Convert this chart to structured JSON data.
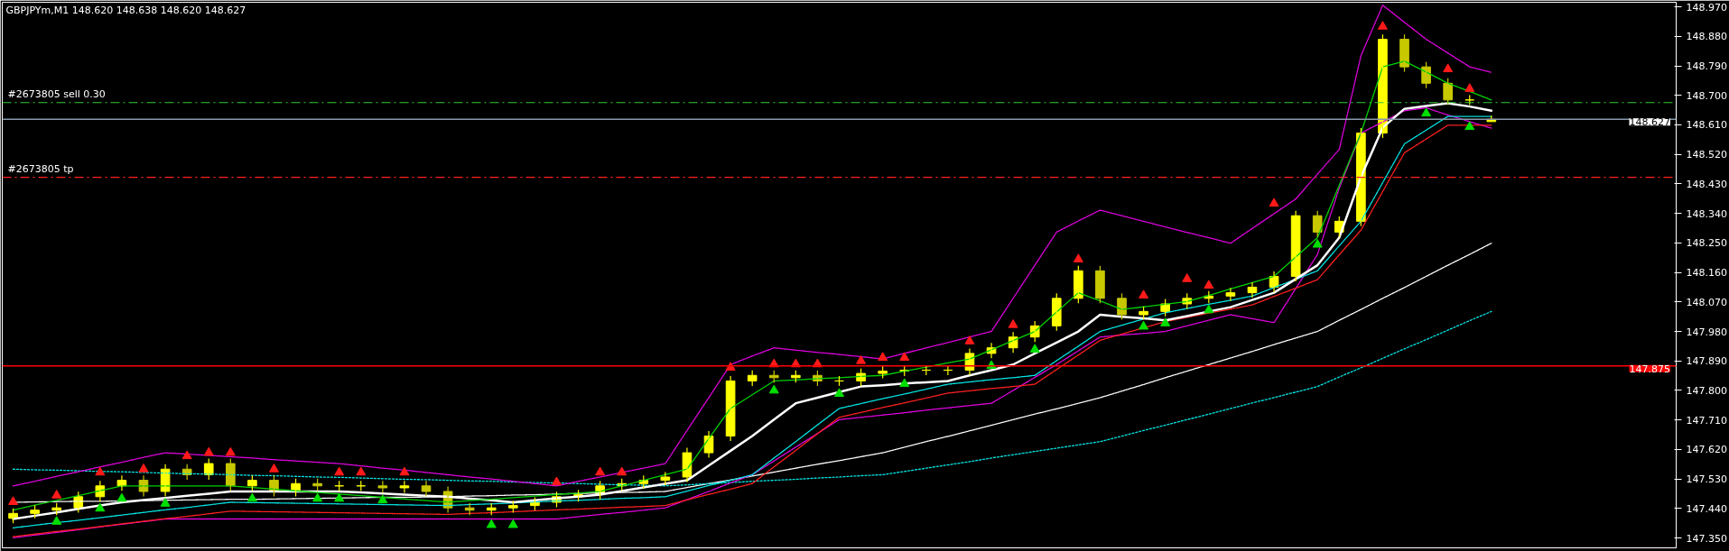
{
  "chart_data": {
    "type": "candlestick",
    "title": "GBPJPYm,M1  148.620 148.638 148.620 148.627",
    "colors": [
      "#ffff00",
      "#ffff00",
      "#ffff00",
      "#ffff00",
      "#ffff00",
      "#ffff00",
      "#c8c800",
      "#ffff00",
      "#c8c800",
      "#ffff00",
      "#c8c800",
      "#ffff00",
      "#c8c800",
      "#ffff00",
      "#c8c800",
      "#ffff00",
      "#ffff00",
      "#c8c800",
      "#ffff00",
      "#c8c800",
      "#c8c800",
      "#c8c800",
      "#ffff00",
      "#ffff00",
      "#ffff00",
      "#ffff00",
      "#ffff00",
      "#ffff00",
      "#ffff00",
      "#ffff00",
      "#ffff00",
      "#ffff00",
      "#ffff00",
      "#ffff00",
      "#ffff00",
      "#c8c800",
      "#ffff00",
      "#c8c800",
      "#ffff00",
      "#ffff00",
      "#ffff00",
      "#ffff00",
      "#ffff00",
      "#ffff00",
      "#ffff00",
      "#ffff00",
      "#ffff00",
      "#ffff00",
      "#ffff00",
      "#ffff00",
      "#c8c800",
      "#c8c800",
      "#ffff00",
      "#ffff00",
      "#ffff00",
      "#ffff00",
      "#ffff00",
      "#ffff00",
      "#ffff00",
      "#ffff00",
      "#c8c800",
      "#ffff00",
      "#ffff00",
      "#ffff00",
      "#c8c800",
      "#c8c800",
      "#c8c800",
      "#ffff00",
      "#ffff00",
      null,
      null,
      null,
      null,
      null,
      null,
      null,
      null
    ],
    "categories": [
      null,
      null,
      null,
      null,
      null,
      null,
      null,
      null,
      null,
      null,
      null,
      null,
      null,
      null,
      null,
      null,
      null,
      null,
      null,
      null,
      null,
      null,
      null,
      null,
      null,
      null,
      null,
      null,
      null,
      null,
      null,
      null,
      null,
      null,
      null,
      null,
      null,
      null,
      null,
      null,
      null,
      null,
      null,
      null,
      null,
      null,
      null,
      null,
      null,
      null,
      null,
      null,
      null,
      null,
      null,
      null,
      null,
      null,
      null,
      null,
      null,
      null,
      null,
      null,
      null,
      null,
      null,
      null,
      null,
      null,
      null,
      null,
      null,
      null,
      null,
      null,
      null
    ],
    "ohlc": [
      [
        147.41,
        147.44,
        147.395,
        147.425
      ],
      [
        147.425,
        147.45,
        147.41,
        147.435
      ],
      [
        147.435,
        147.457,
        147.42,
        147.442
      ],
      [
        147.442,
        147.491,
        147.427,
        147.476
      ],
      [
        147.476,
        147.524,
        147.461,
        147.509
      ],
      [
        147.509,
        147.541,
        147.494,
        147.526
      ],
      [
        147.526,
        147.541,
        147.477,
        147.492
      ],
      [
        147.492,
        147.575,
        147.477,
        147.56
      ],
      [
        147.56,
        147.575,
        147.528,
        147.543
      ],
      [
        147.543,
        147.592,
        147.528,
        147.577
      ],
      [
        147.577,
        147.592,
        147.494,
        147.509
      ],
      [
        147.509,
        147.541,
        147.494,
        147.526
      ],
      [
        147.526,
        147.541,
        147.477,
        147.492
      ],
      [
        147.492,
        147.531,
        147.477,
        147.516
      ],
      [
        147.516,
        147.531,
        147.494,
        147.509
      ],
      [
        147.509,
        147.524,
        147.494,
        147.509
      ],
      [
        147.509,
        147.524,
        147.494,
        147.509
      ],
      [
        147.509,
        147.524,
        147.488,
        147.503
      ],
      [
        147.503,
        147.524,
        147.488,
        147.509
      ],
      [
        147.509,
        147.524,
        147.477,
        147.492
      ],
      [
        147.492,
        147.507,
        147.427,
        147.442
      ],
      [
        147.442,
        147.457,
        147.42,
        147.435
      ],
      [
        147.435,
        147.457,
        147.42,
        147.442
      ],
      [
        147.442,
        147.464,
        147.427,
        147.449
      ],
      [
        147.449,
        147.474,
        147.434,
        147.459
      ],
      [
        147.459,
        147.491,
        147.444,
        147.476
      ],
      [
        147.476,
        147.497,
        147.461,
        147.482
      ],
      [
        147.482,
        147.524,
        147.467,
        147.509
      ],
      [
        147.509,
        147.531,
        147.494,
        147.516
      ],
      [
        147.516,
        147.541,
        147.501,
        147.526
      ],
      [
        147.526,
        147.551,
        147.511,
        147.536
      ],
      [
        147.536,
        147.625,
        147.521,
        147.61
      ],
      [
        147.61,
        147.676,
        147.595,
        147.661
      ],
      [
        147.661,
        147.844,
        147.646,
        147.829
      ],
      [
        147.829,
        147.861,
        147.814,
        147.846
      ],
      [
        147.846,
        147.861,
        147.824,
        147.839
      ],
      [
        147.839,
        147.861,
        147.824,
        147.846
      ],
      [
        147.846,
        147.861,
        147.814,
        147.829
      ],
      [
        147.829,
        147.844,
        147.814,
        147.829
      ],
      [
        147.829,
        147.867,
        147.814,
        147.852
      ],
      [
        147.852,
        147.874,
        147.837,
        147.859
      ],
      [
        147.859,
        147.877,
        147.844,
        147.862
      ],
      [
        147.862,
        147.877,
        147.847,
        147.862
      ],
      [
        147.862,
        147.877,
        147.847,
        147.862
      ],
      [
        147.862,
        147.928,
        147.847,
        147.913
      ],
      [
        147.913,
        147.945,
        147.898,
        147.93
      ],
      [
        147.93,
        147.978,
        147.915,
        147.963
      ],
      [
        147.963,
        148.012,
        147.948,
        147.997
      ],
      [
        147.997,
        148.096,
        147.982,
        148.081
      ],
      [
        148.081,
        148.18,
        148.066,
        148.165
      ],
      [
        148.165,
        148.18,
        148.066,
        148.081
      ],
      [
        148.081,
        148.096,
        148.016,
        148.031
      ],
      [
        148.031,
        148.056,
        148.016,
        148.041
      ],
      [
        148.041,
        148.079,
        148.026,
        148.064
      ],
      [
        148.064,
        148.096,
        148.049,
        148.081
      ],
      [
        148.081,
        148.103,
        148.066,
        148.088
      ],
      [
        148.088,
        148.113,
        148.073,
        148.098
      ],
      [
        148.098,
        148.13,
        148.083,
        148.115
      ],
      [
        148.115,
        148.163,
        148.1,
        148.148
      ],
      [
        148.148,
        148.348,
        148.133,
        148.333
      ],
      [
        148.333,
        148.348,
        148.268,
        148.283
      ],
      [
        148.283,
        148.331,
        148.268,
        148.316
      ],
      [
        148.316,
        148.6,
        148.301,
        148.585
      ],
      [
        148.585,
        148.886,
        148.57,
        148.871
      ],
      [
        148.871,
        148.886,
        148.772,
        148.787
      ],
      [
        148.787,
        148.802,
        148.722,
        148.737
      ],
      [
        148.737,
        148.752,
        148.671,
        148.686
      ],
      [
        148.686,
        148.701,
        148.671,
        148.686
      ],
      [
        148.62,
        148.638,
        148.62,
        148.627
      ],
      null,
      null,
      null,
      null,
      null,
      null,
      null,
      null
    ],
    "series": [
      {
        "type": "line",
        "color": "#ffffff",
        "line_style": "dashed",
        "values": [
          147.459,
          147.46,
          147.461,
          147.462,
          147.462,
          147.463,
          147.464,
          147.465,
          147.466,
          147.467,
          147.468,
          147.468,
          147.469,
          147.47,
          147.471,
          147.472,
          147.473,
          147.474,
          147.474,
          147.475,
          147.476,
          147.478,
          147.479,
          147.481,
          147.482,
          147.484,
          147.486,
          147.487,
          147.489,
          147.49,
          147.492,
          147.504,
          147.516,
          147.527,
          147.539,
          147.551,
          147.563,
          147.575,
          147.586,
          147.598,
          147.61,
          147.627,
          147.644,
          147.66,
          147.677,
          147.694,
          147.711,
          147.728,
          147.744,
          147.761,
          147.778,
          147.798,
          147.818,
          147.839,
          147.859,
          147.879,
          147.899,
          147.919,
          147.94,
          147.96,
          147.98,
          148.014,
          148.047,
          148.081,
          148.114,
          148.148,
          148.182,
          148.215,
          148.249,
          null,
          null,
          null,
          null,
          null,
          null,
          null,
          null
        ]
      },
      {
        "type": "line",
        "color": "#00e5e5",
        "line_style": "dotted",
        "values": [
          147.56,
          147.558,
          147.557,
          147.555,
          147.553,
          147.552,
          147.55,
          147.548,
          147.546,
          147.545,
          147.543,
          147.541,
          147.54,
          147.538,
          147.536,
          147.535,
          147.533,
          147.531,
          147.529,
          147.528,
          147.526,
          147.524,
          147.523,
          147.521,
          147.519,
          147.518,
          147.516,
          147.514,
          147.512,
          147.511,
          147.509,
          147.512,
          147.516,
          147.519,
          147.523,
          147.526,
          147.529,
          147.533,
          147.536,
          147.54,
          147.543,
          147.553,
          147.563,
          147.573,
          147.583,
          147.594,
          147.604,
          147.614,
          147.624,
          147.634,
          147.644,
          147.661,
          147.678,
          147.694,
          147.711,
          147.728,
          147.745,
          147.762,
          147.778,
          147.795,
          147.812,
          147.841,
          147.869,
          147.898,
          147.927,
          147.955,
          147.984,
          148.013,
          148.041,
          null,
          null,
          null,
          null,
          null,
          null,
          null,
          null
        ]
      },
      {
        "type": "line",
        "color": "#e000e0",
        "line_style": "dashed",
        "values": [
          147.509,
          147.523,
          147.538,
          147.552,
          147.567,
          147.581,
          147.596,
          147.61,
          147.606,
          147.602,
          147.598,
          147.594,
          147.589,
          147.585,
          147.581,
          147.577,
          147.57,
          147.563,
          147.557,
          147.55,
          147.543,
          147.536,
          147.53,
          147.523,
          147.516,
          147.509,
          147.523,
          147.536,
          147.55,
          147.563,
          147.577,
          147.678,
          147.778,
          147.879,
          147.905,
          147.93,
          147.923,
          147.916,
          147.91,
          147.903,
          147.896,
          147.913,
          147.93,
          147.946,
          147.963,
          147.98,
          148.081,
          148.182,
          148.283,
          148.317,
          148.35,
          148.333,
          148.316,
          148.299,
          148.282,
          148.266,
          148.249,
          148.294,
          148.339,
          148.384,
          148.46,
          148.535,
          148.821,
          148.975,
          148.923,
          148.871,
          148.829,
          148.787,
          148.77,
          null,
          null,
          null,
          null,
          null,
          null,
          null,
          null
        ]
      },
      {
        "type": "line",
        "color": "#e000e0",
        "line_style": "dashed",
        "values": [
          147.351,
          147.359,
          147.367,
          147.375,
          147.384,
          147.392,
          147.4,
          147.408,
          147.408,
          147.408,
          147.408,
          147.408,
          147.408,
          147.408,
          147.408,
          147.408,
          147.408,
          147.408,
          147.408,
          147.408,
          147.408,
          147.408,
          147.408,
          147.408,
          147.408,
          147.408,
          147.415,
          147.422,
          147.428,
          147.435,
          147.442,
          147.467,
          147.492,
          147.518,
          147.543,
          147.585,
          147.627,
          147.669,
          147.711,
          147.718,
          147.725,
          147.732,
          147.74,
          147.747,
          147.754,
          147.761,
          147.8,
          147.84,
          147.879,
          147.921,
          147.963,
          147.969,
          147.974,
          147.98,
          147.997,
          148.014,
          148.031,
          148.019,
          148.007,
          148.111,
          148.215,
          148.417,
          148.585,
          148.619,
          148.653,
          148.662,
          148.64,
          148.62,
          148.6,
          null,
          null,
          null,
          null,
          null,
          null,
          null,
          null
        ]
      },
      {
        "type": "line",
        "color": "#ff2020",
        "line_style": "dashed",
        "values": [
          147.354,
          147.362,
          147.37,
          147.377,
          147.385,
          147.393,
          147.401,
          147.409,
          147.416,
          147.424,
          147.432,
          147.431,
          147.43,
          147.429,
          147.428,
          147.427,
          147.426,
          147.425,
          147.424,
          147.423,
          147.422,
          147.425,
          147.427,
          147.43,
          147.433,
          147.436,
          147.438,
          147.441,
          147.444,
          147.446,
          147.449,
          147.466,
          147.483,
          147.499,
          147.516,
          147.567,
          147.617,
          147.668,
          147.718,
          147.733,
          147.748,
          147.762,
          147.777,
          147.792,
          147.799,
          147.806,
          147.812,
          147.819,
          147.864,
          147.908,
          147.953,
          147.972,
          147.991,
          148.01,
          148.023,
          148.036,
          148.048,
          148.061,
          148.087,
          148.112,
          148.138,
          148.214,
          148.289,
          148.407,
          148.525,
          148.567,
          148.609,
          148.609,
          148.609,
          null,
          null,
          null,
          null,
          null,
          null,
          null,
          null
        ]
      },
      {
        "type": "line",
        "color": "#00e5e5",
        "line_style": "dashed",
        "values": [
          147.381,
          147.389,
          147.397,
          147.404,
          147.412,
          147.42,
          147.428,
          147.436,
          147.443,
          147.451,
          147.459,
          147.458,
          147.457,
          147.456,
          147.455,
          147.454,
          147.453,
          147.452,
          147.451,
          147.45,
          147.449,
          147.452,
          147.454,
          147.457,
          147.46,
          147.463,
          147.465,
          147.468,
          147.471,
          147.473,
          147.476,
          147.493,
          147.51,
          147.526,
          147.543,
          147.594,
          147.644,
          147.695,
          147.745,
          147.76,
          147.775,
          147.789,
          147.804,
          147.819,
          147.826,
          147.833,
          147.839,
          147.846,
          147.891,
          147.935,
          147.98,
          147.999,
          148.018,
          148.037,
          148.05,
          148.063,
          148.075,
          148.088,
          148.114,
          148.139,
          148.165,
          148.241,
          148.316,
          148.434,
          148.552,
          148.594,
          148.636,
          148.636,
          148.636,
          null,
          null,
          null,
          null,
          null,
          null,
          null,
          null
        ]
      },
      {
        "type": "line",
        "color": "#ffffff",
        "line_style": "solid",
        "values": [
          147.408,
          147.418,
          147.428,
          147.439,
          147.449,
          147.459,
          147.466,
          147.472,
          147.479,
          147.485,
          147.492,
          147.492,
          147.492,
          147.492,
          147.492,
          147.492,
          147.489,
          147.486,
          147.482,
          147.479,
          147.476,
          147.47,
          147.465,
          147.459,
          147.465,
          147.471,
          147.476,
          147.482,
          147.493,
          147.504,
          147.515,
          147.526,
          147.571,
          147.616,
          147.661,
          147.711,
          147.761,
          147.778,
          147.795,
          147.812,
          147.816,
          147.821,
          147.825,
          147.829,
          147.846,
          147.862,
          147.879,
          147.913,
          147.946,
          147.98,
          148.031,
          148.025,
          148.02,
          148.014,
          148.027,
          148.041,
          148.054,
          148.076,
          148.098,
          148.14,
          148.182,
          148.266,
          148.451,
          148.602,
          148.659,
          148.668,
          148.676,
          148.666,
          148.653,
          null,
          null,
          null,
          null,
          null,
          null,
          null,
          null
        ]
      },
      {
        "type": "line",
        "color": "#00d000",
        "line_style": "solid",
        "values": [
          147.435,
          147.45,
          147.465,
          147.479,
          147.494,
          147.509,
          147.509,
          147.509,
          147.509,
          147.509,
          147.509,
          147.504,
          147.499,
          147.494,
          147.489,
          147.484,
          147.479,
          147.474,
          147.469,
          147.464,
          147.459,
          147.464,
          147.468,
          147.473,
          147.478,
          147.483,
          147.487,
          147.492,
          147.509,
          147.526,
          147.543,
          147.56,
          147.653,
          147.745,
          147.787,
          147.829,
          147.832,
          147.836,
          147.839,
          147.843,
          147.846,
          147.859,
          147.871,
          147.884,
          147.896,
          147.924,
          147.952,
          147.98,
          148.039,
          148.098,
          148.073,
          148.047,
          148.055,
          148.063,
          148.071,
          148.09,
          148.11,
          148.129,
          148.148,
          148.207,
          148.266,
          148.426,
          148.585,
          148.787,
          148.804,
          148.771,
          148.737,
          148.712,
          148.686,
          null,
          null,
          null,
          null,
          null,
          null,
          null,
          null
        ]
      },
      {
        "type": "scatter",
        "color": "#ff1a1a",
        "marker": "triangle",
        "values": [
          147.46,
          null,
          147.48,
          null,
          147.55,
          null,
          147.56,
          null,
          147.6,
          147.61,
          147.61,
          null,
          147.56,
          null,
          null,
          147.55,
          147.55,
          null,
          147.55,
          null,
          null,
          null,
          null,
          null,
          null,
          147.52,
          null,
          147.55,
          147.55,
          null,
          null,
          null,
          null,
          147.87,
          null,
          147.88,
          147.88,
          147.88,
          null,
          147.89,
          147.9,
          147.9,
          null,
          null,
          147.95,
          null,
          148.0,
          null,
          null,
          148.2,
          null,
          null,
          148.09,
          null,
          148.14,
          148.12,
          null,
          null,
          148.37,
          null,
          null,
          null,
          null,
          148.91,
          null,
          null,
          148.78,
          148.72,
          null,
          null,
          null,
          null,
          null,
          null,
          null,
          null,
          null
        ]
      },
      {
        "type": "scatter",
        "color": "#00e000",
        "marker": "triangle",
        "values": [
          null,
          null,
          147.4,
          null,
          147.44,
          147.47,
          null,
          147.455,
          null,
          null,
          null,
          147.47,
          null,
          null,
          147.47,
          147.47,
          null,
          147.465,
          null,
          null,
          null,
          null,
          147.39,
          147.39,
          null,
          null,
          null,
          null,
          null,
          null,
          null,
          null,
          null,
          null,
          null,
          147.8,
          null,
          null,
          147.79,
          null,
          null,
          147.82,
          null,
          null,
          null,
          147.875,
          null,
          147.925,
          null,
          null,
          null,
          null,
          147.995,
          148.005,
          null,
          148.045,
          null,
          null,
          null,
          null,
          148.245,
          null,
          null,
          null,
          null,
          148.645,
          null,
          148.604,
          null,
          null,
          null,
          null,
          null,
          null,
          null,
          null,
          null
        ]
      }
    ],
    "ref_lines": [
      {
        "axis": "y",
        "value": 148.678,
        "label": "#2673805 sell 0.30",
        "color": "#33cc33",
        "line_style": "dashdot"
      },
      {
        "axis": "y",
        "value": 148.627,
        "label": "148.627",
        "color": "#8899aa",
        "line_style": "solid"
      },
      {
        "axis": "y",
        "value": 148.45,
        "label": "#2673805 tp",
        "color": "#ff2020",
        "line_style": "dashdot"
      },
      {
        "axis": "y",
        "value": 147.875,
        "label": "147.875",
        "color": "#ff0000",
        "line_style": "solid"
      }
    ],
    "ylim": [
      147.32,
      148.984
    ],
    "yticks": [
      {
        "value": 147.35,
        "label": "147.350"
      },
      {
        "value": 147.44,
        "label": "147.440"
      },
      {
        "value": 147.53,
        "label": "147.530"
      },
      {
        "value": 147.62,
        "label": "147.620"
      },
      {
        "value": 147.71,
        "label": "147.710"
      },
      {
        "value": 147.8,
        "label": "147.800"
      },
      {
        "value": 147.89,
        "label": "147.890"
      },
      {
        "value": 147.98,
        "label": "147.980"
      },
      {
        "value": 148.07,
        "label": "148.070"
      },
      {
        "value": 148.16,
        "label": "148.160"
      },
      {
        "value": 148.25,
        "label": "148.250"
      },
      {
        "value": 148.34,
        "label": "148.340"
      },
      {
        "value": 148.43,
        "label": "148.430"
      },
      {
        "value": 148.52,
        "label": "148.520"
      },
      {
        "value": 148.61,
        "label": "148.610"
      },
      {
        "value": 148.7,
        "label": "148.700"
      },
      {
        "value": 148.79,
        "label": "148.790"
      },
      {
        "value": 148.88,
        "label": "148.880"
      },
      {
        "value": 148.97,
        "label": "148.970"
      }
    ],
    "tick_labels": "y",
    "grid": false
  }
}
